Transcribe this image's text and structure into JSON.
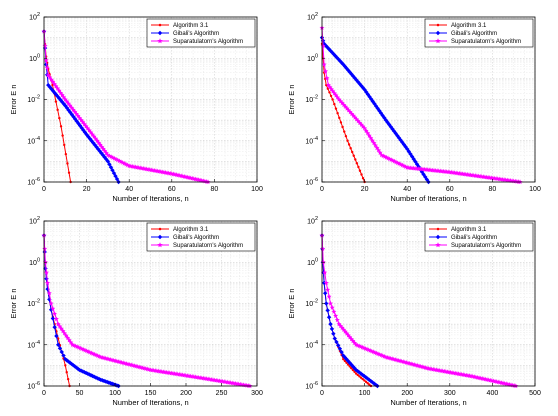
{
  "colors": {
    "algorithm31": "#ff0000",
    "gibali": "#0000ff",
    "suparatulatorn": "#ff00ff"
  },
  "chart_data": [
    {
      "type": "line",
      "xlabel": "Number of Iterations, n",
      "ylabel": "Error E n",
      "yscale": "log",
      "xlim": [
        0,
        100
      ],
      "ylim": [
        1e-06,
        100
      ],
      "xticks": [
        "0",
        "20",
        "40",
        "60",
        "80",
        "100"
      ],
      "yticks": [
        {
          "base": "10",
          "exp": "2"
        },
        {
          "base": "10",
          "exp": "0"
        },
        {
          "base": "10",
          "exp": "-2"
        },
        {
          "base": "10",
          "exp": "-4"
        },
        {
          "base": "10",
          "exp": "-6"
        }
      ],
      "grid": true,
      "legend_position": "top-right",
      "series": [
        {
          "name": "Algorithm 3.1",
          "color": "#ff0000",
          "marker": "dot",
          "points": [
            [
              0,
              20
            ],
            [
              1,
              1.2
            ],
            [
              2,
              0.3
            ],
            [
              4,
              0.05
            ],
            [
              8,
              0.0005
            ],
            [
              12.5,
              1e-06
            ]
          ]
        },
        {
          "name": "Gibali's Algorithm",
          "color": "#0000ff",
          "marker": "diamond",
          "points": [
            [
              0,
              20
            ],
            [
              1,
              0.5
            ],
            [
              2,
              0.05
            ],
            [
              10,
              0.005
            ],
            [
              20,
              0.0002
            ],
            [
              30,
              1e-05
            ],
            [
              35,
              1e-06
            ]
          ]
        },
        {
          "name": "Suparatulatorn's Algorithm",
          "color": "#ff00ff",
          "marker": "star",
          "points": [
            [
              0,
              20
            ],
            [
              1,
              0.8
            ],
            [
              2,
              0.15
            ],
            [
              10,
              0.01
            ],
            [
              25,
              0.0001
            ],
            [
              30,
              2e-05
            ],
            [
              40,
              6e-06
            ],
            [
              60,
              2.5e-06
            ],
            [
              77,
              1e-06
            ]
          ]
        }
      ]
    },
    {
      "type": "line",
      "xlabel": "Number of Iterations, n",
      "ylabel": "Error E n",
      "yscale": "log",
      "xlim": [
        0,
        100
      ],
      "ylim": [
        1e-06,
        100
      ],
      "xticks": [
        "0",
        "20",
        "40",
        "60",
        "80",
        "100"
      ],
      "yticks": [
        {
          "base": "10",
          "exp": "2"
        },
        {
          "base": "10",
          "exp": "0"
        },
        {
          "base": "10",
          "exp": "-2"
        },
        {
          "base": "10",
          "exp": "-4"
        },
        {
          "base": "10",
          "exp": "-6"
        }
      ],
      "grid": true,
      "legend_position": "top-right",
      "series": [
        {
          "name": "Algorithm 3.1",
          "color": "#ff0000",
          "marker": "dot",
          "points": [
            [
              0,
              5
            ],
            [
              1,
              0.2
            ],
            [
              2,
              0.05
            ],
            [
              5,
              0.01
            ],
            [
              12,
              0.0001
            ],
            [
              20,
              1e-06
            ]
          ]
        },
        {
          "name": "Gibali's Algorithm",
          "color": "#0000ff",
          "marker": "diamond",
          "points": [
            [
              0,
              10
            ],
            [
              1,
              5
            ],
            [
              10,
              0.5
            ],
            [
              20,
              0.03
            ],
            [
              30,
              0.001
            ],
            [
              40,
              4e-05
            ],
            [
              50,
              1e-06
            ]
          ]
        },
        {
          "name": "Suparatulatorn's Algorithm",
          "color": "#ff00ff",
          "marker": "star",
          "points": [
            [
              0,
              30
            ],
            [
              1,
              0.5
            ],
            [
              3,
              0.05
            ],
            [
              8,
              0.01
            ],
            [
              20,
              0.0004
            ],
            [
              28,
              2e-05
            ],
            [
              40,
              5e-06
            ],
            [
              60,
              3e-06
            ],
            [
              93,
              1e-06
            ]
          ]
        }
      ]
    },
    {
      "type": "line",
      "xlabel": "Number of Iterations, n",
      "ylabel": "Error E n",
      "yscale": "log",
      "xlim": [
        0,
        300
      ],
      "ylim": [
        1e-06,
        100
      ],
      "xticks": [
        "0",
        "50",
        "100",
        "150",
        "200",
        "250",
        "300"
      ],
      "yticks": [
        {
          "base": "10",
          "exp": "2"
        },
        {
          "base": "10",
          "exp": "0"
        },
        {
          "base": "10",
          "exp": "-2"
        },
        {
          "base": "10",
          "exp": "-4"
        },
        {
          "base": "10",
          "exp": "-6"
        }
      ],
      "grid": true,
      "legend_position": "top-right",
      "series": [
        {
          "name": "Algorithm 3.1",
          "color": "#ff0000",
          "marker": "dot",
          "points": [
            [
              0,
              20
            ],
            [
              2,
              0.5
            ],
            [
              5,
              0.05
            ],
            [
              10,
              0.005
            ],
            [
              20,
              0.0002
            ],
            [
              30,
              1e-05
            ],
            [
              36,
              1e-06
            ]
          ]
        },
        {
          "name": "Gibali's Algorithm",
          "color": "#0000ff",
          "marker": "diamond",
          "points": [
            [
              0,
              20
            ],
            [
              2,
              0.5
            ],
            [
              5,
              0.05
            ],
            [
              10,
              0.005
            ],
            [
              20,
              0.0001
            ],
            [
              30,
              2e-05
            ],
            [
              50,
              6e-06
            ],
            [
              80,
              2e-06
            ],
            [
              105,
              1e-06
            ]
          ]
        },
        {
          "name": "Suparatulatorn's Algorithm",
          "color": "#ff00ff",
          "marker": "star",
          "points": [
            [
              0,
              20
            ],
            [
              2,
              1
            ],
            [
              5,
              0.1
            ],
            [
              10,
              0.01
            ],
            [
              20,
              0.001
            ],
            [
              40,
              0.0001
            ],
            [
              80,
              2.5e-05
            ],
            [
              150,
              6e-06
            ],
            [
              220,
              2.5e-06
            ],
            [
              290,
              1e-06
            ]
          ]
        }
      ]
    },
    {
      "type": "line",
      "xlabel": "Number of Iterations, n",
      "ylabel": "Error E n",
      "yscale": "log",
      "xlim": [
        0,
        500
      ],
      "ylim": [
        1e-06,
        100
      ],
      "xticks": [
        "0",
        "100",
        "200",
        "300",
        "400",
        "500"
      ],
      "yticks": [
        {
          "base": "10",
          "exp": "2"
        },
        {
          "base": "10",
          "exp": "0"
        },
        {
          "base": "10",
          "exp": "-2"
        },
        {
          "base": "10",
          "exp": "-4"
        },
        {
          "base": "10",
          "exp": "-6"
        }
      ],
      "grid": true,
      "legend_position": "top-right",
      "series": [
        {
          "name": "Algorithm 3.1",
          "color": "#ff0000",
          "marker": "dot",
          "points": [
            [
              0,
              20
            ],
            [
              2,
              1
            ],
            [
              5,
              0.1
            ],
            [
              10,
              0.01
            ],
            [
              20,
              0.001
            ],
            [
              30,
              0.0002
            ],
            [
              50,
              2e-05
            ],
            [
              80,
              4e-06
            ],
            [
              115,
              1e-06
            ]
          ]
        },
        {
          "name": "Gibali's Algorithm",
          "color": "#0000ff",
          "marker": "diamond",
          "points": [
            [
              0,
              20
            ],
            [
              2,
              1
            ],
            [
              5,
              0.1
            ],
            [
              10,
              0.01
            ],
            [
              20,
              0.001
            ],
            [
              30,
              0.0002
            ],
            [
              50,
              3e-05
            ],
            [
              80,
              6e-06
            ],
            [
              130,
              1e-06
            ]
          ]
        },
        {
          "name": "Suparatulatorn's Algorithm",
          "color": "#ff00ff",
          "marker": "star",
          "points": [
            [
              0,
              20
            ],
            [
              3,
              1
            ],
            [
              10,
              0.1
            ],
            [
              20,
              0.01
            ],
            [
              40,
              0.001
            ],
            [
              80,
              0.0001
            ],
            [
              150,
              2.5e-05
            ],
            [
              250,
              7e-06
            ],
            [
              350,
              3e-06
            ],
            [
              455,
              1e-06
            ]
          ]
        }
      ]
    }
  ]
}
